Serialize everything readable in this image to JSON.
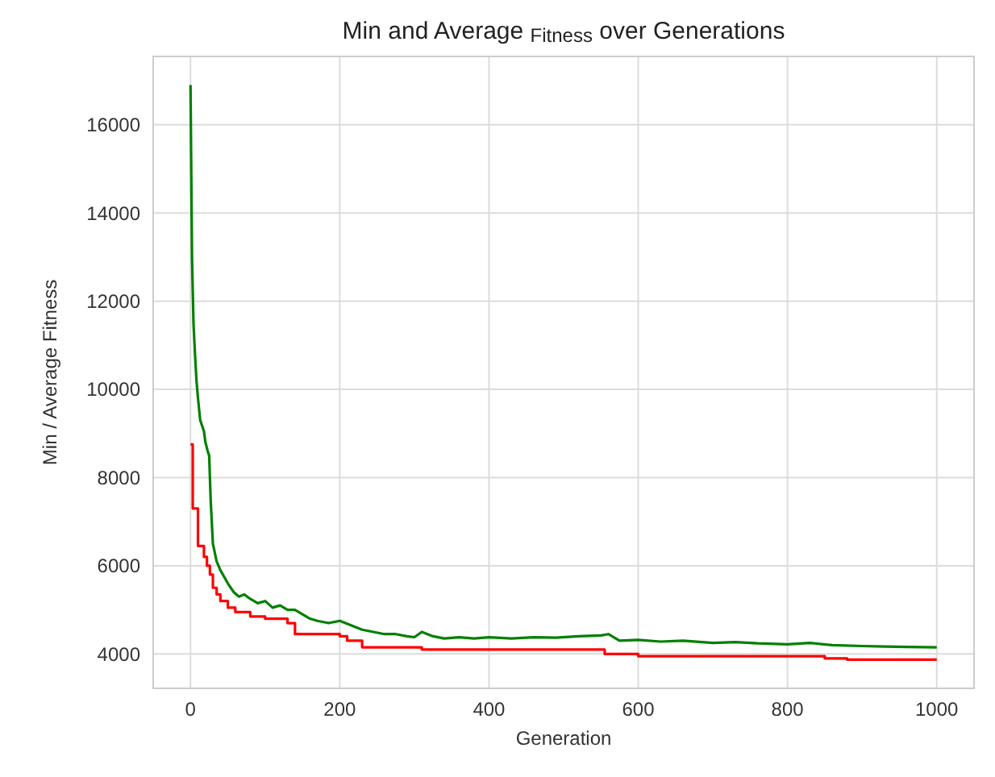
{
  "chart_data": {
    "type": "line",
    "title": "Min and Average $_{Fitness}$ over Generations",
    "xlabel": "Generation",
    "ylabel": "Min / Average Fitness",
    "xlim": [
      -50,
      1050
    ],
    "ylim": [
      3220,
      17550
    ],
    "xticks": [
      0,
      200,
      400,
      600,
      800,
      1000
    ],
    "yticks": [
      4000,
      6000,
      8000,
      10000,
      12000,
      14000,
      16000
    ],
    "grid": true,
    "series": [
      {
        "type": "step",
        "color": "#ff0000",
        "x": [
          0,
          3,
          10,
          18,
          22,
          26,
          30,
          35,
          40,
          50,
          60,
          80,
          100,
          130,
          140,
          200,
          210,
          230,
          310,
          555,
          600,
          850,
          880,
          1000
        ],
        "values": [
          8750,
          7300,
          6450,
          6200,
          6000,
          5800,
          5500,
          5350,
          5200,
          5050,
          4950,
          4850,
          4800,
          4700,
          4450,
          4400,
          4300,
          4150,
          4100,
          4000,
          3950,
          3900,
          3870,
          3870
        ]
      },
      {
        "color": "#008000",
        "x": [
          0,
          2,
          4,
          6,
          8,
          10,
          13,
          15,
          18,
          20,
          23,
          25,
          27,
          30,
          35,
          40,
          45,
          50,
          58,
          65,
          72,
          80,
          90,
          100,
          110,
          120,
          130,
          140,
          150,
          160,
          170,
          185,
          200,
          215,
          230,
          245,
          260,
          275,
          290,
          300,
          310,
          325,
          340,
          360,
          380,
          400,
          430,
          460,
          490,
          520,
          550,
          560,
          575,
          600,
          630,
          660,
          700,
          730,
          760,
          800,
          830,
          860,
          900,
          930,
          960,
          1000
        ],
        "values": [
          16900,
          13000,
          11500,
          10800,
          10200,
          9800,
          9300,
          9200,
          9050,
          8800,
          8600,
          8500,
          7500,
          6500,
          6100,
          5900,
          5750,
          5600,
          5400,
          5300,
          5350,
          5250,
          5150,
          5200,
          5050,
          5100,
          5000,
          5000,
          4900,
          4800,
          4750,
          4700,
          4750,
          4650,
          4550,
          4500,
          4450,
          4450,
          4400,
          4380,
          4500,
          4400,
          4350,
          4380,
          4350,
          4380,
          4350,
          4380,
          4370,
          4400,
          4420,
          4450,
          4300,
          4320,
          4280,
          4300,
          4250,
          4270,
          4240,
          4220,
          4250,
          4200,
          4180,
          4170,
          4160,
          4150
        ]
      }
    ]
  }
}
